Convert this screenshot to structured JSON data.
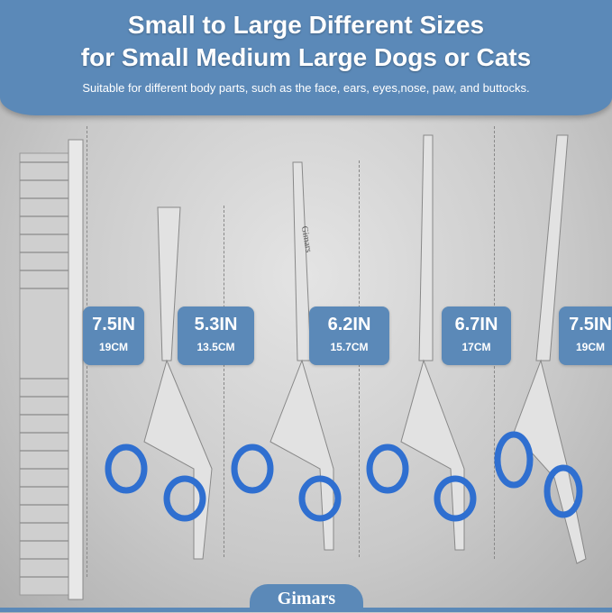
{
  "header": {
    "title_line1": "Small to Large Different Sizes",
    "title_line2": "for Small Medium Large Dogs or Cats",
    "subtitle": "Suitable for different body parts, such as the face, ears, eyes,nose, paw, and buttocks."
  },
  "sizes": [
    {
      "in": "7.5IN",
      "cm": "19CM"
    },
    {
      "in": "5.3IN",
      "cm": "13.5CM"
    },
    {
      "in": "6.2IN",
      "cm": "15.7CM"
    },
    {
      "in": "6.7IN",
      "cm": "17CM"
    },
    {
      "in": "7.5IN",
      "cm": "19CM"
    }
  ],
  "engraving": "Gimars",
  "brand": "Gimars",
  "colors": {
    "accent": "#5b89b8",
    "ring": "#2f6fd0"
  }
}
